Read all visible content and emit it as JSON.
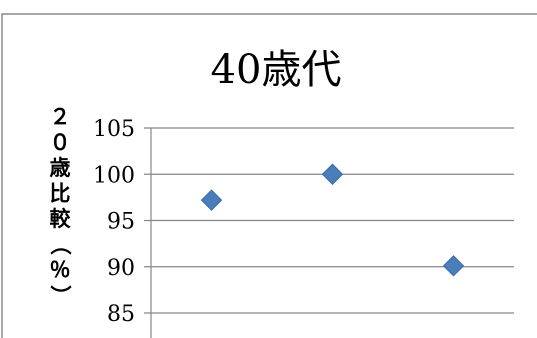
{
  "chart_data": {
    "type": "scatter",
    "title": "40歳代",
    "ylabel": "２０歳比較（％）",
    "ylim": [
      85,
      105
    ],
    "yticks": [
      105,
      100,
      95,
      90,
      85
    ],
    "grid": true,
    "legend": "none",
    "x": [
      1,
      2,
      3
    ],
    "series": [
      {
        "values": [
          97.2,
          100,
          90.1
        ],
        "color": "#4a7ebb"
      }
    ]
  }
}
